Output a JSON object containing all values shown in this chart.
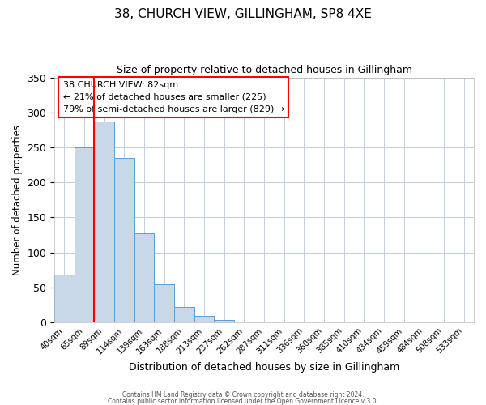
{
  "title": "38, CHURCH VIEW, GILLINGHAM, SP8 4XE",
  "subtitle": "Size of property relative to detached houses in Gillingham",
  "xlabel": "Distribution of detached houses by size in Gillingham",
  "ylabel": "Number of detached properties",
  "bar_labels": [
    "40sqm",
    "65sqm",
    "89sqm",
    "114sqm",
    "139sqm",
    "163sqm",
    "188sqm",
    "213sqm",
    "237sqm",
    "262sqm",
    "287sqm",
    "311sqm",
    "336sqm",
    "360sqm",
    "385sqm",
    "410sqm",
    "434sqm",
    "459sqm",
    "484sqm",
    "508sqm",
    "533sqm"
  ],
  "bar_heights": [
    68,
    250,
    287,
    235,
    128,
    54,
    22,
    10,
    4,
    0,
    0,
    0,
    0,
    0,
    0,
    0,
    0,
    0,
    0,
    1,
    0
  ],
  "bar_color": "#c8d8e8",
  "bar_edge_color": "#5a9fd4",
  "ylim": [
    0,
    350
  ],
  "yticks": [
    0,
    50,
    100,
    150,
    200,
    250,
    300,
    350
  ],
  "red_line_x": 1.5,
  "annotation_title": "38 CHURCH VIEW: 82sqm",
  "annotation_line1": "← 21% of detached houses are smaller (225)",
  "annotation_line2": "79% of semi-detached houses are larger (829) →",
  "footer1": "Contains HM Land Registry data © Crown copyright and database right 2024.",
  "footer2": "Contains public sector information licensed under the Open Government Licence v 3.0.",
  "background_color": "#ffffff",
  "grid_color": "#c0cfe0"
}
